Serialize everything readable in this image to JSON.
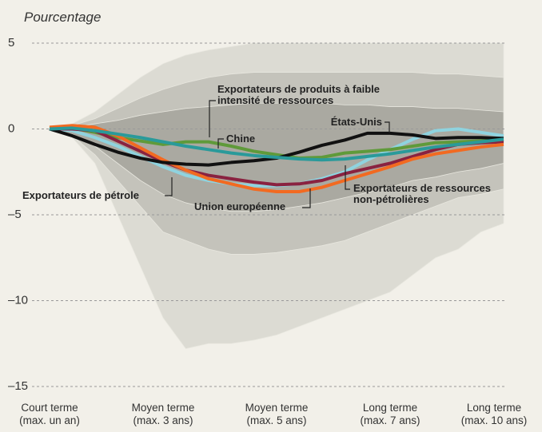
{
  "chart_data": {
    "type": "line",
    "y_label": "Pourcentage",
    "x": [
      0,
      1,
      2,
      3,
      4,
      5,
      6,
      7,
      8,
      9,
      10,
      11,
      12,
      13,
      14,
      15,
      16,
      17,
      18,
      19,
      20
    ],
    "xlim": [
      0,
      20
    ],
    "xticks": [
      {
        "value": 0,
        "label": "Court terme\n(max. un an)"
      },
      {
        "value": 5,
        "label": "Moyen terme\n(max. 3 ans)"
      },
      {
        "value": 10,
        "label": "Moyen terme\n(max. 5 ans)"
      },
      {
        "value": 15,
        "label": "Long terme\n(max. 7 ans)"
      },
      {
        "value": 20,
        "label": "Long terme\n(max. 10 ans)"
      }
    ],
    "ylim": [
      -15.3,
      5.5
    ],
    "yticks": [
      5,
      0,
      {
        "value": -5,
        "label": "–5"
      },
      {
        "value": -10,
        "label": "–10"
      },
      {
        "value": -15,
        "label": "–15"
      }
    ],
    "grid": true,
    "bands": [
      {
        "color": "#dcdbd3",
        "upper": [
          0,
          0.3,
          1,
          2,
          3,
          3.8,
          4.3,
          4.6,
          4.8,
          5,
          5,
          5,
          5,
          5,
          5,
          5,
          5,
          5,
          5,
          5,
          5
        ],
        "lower": [
          0,
          -0.5,
          -2,
          -5,
          -8,
          -11,
          -12.8,
          -12.5,
          -12.5,
          -12.3,
          -12,
          -11.5,
          -11,
          -10.5,
          -10,
          -9.5,
          -8.5,
          -7.5,
          -7,
          -6,
          -5.5
        ]
      },
      {
        "color": "#c4c3bb",
        "upper": [
          0,
          0.2,
          0.6,
          1.2,
          1.8,
          2.3,
          2.7,
          3,
          3.2,
          3.3,
          3.3,
          3.3,
          3.3,
          3.3,
          3.3,
          3.3,
          3.3,
          3.2,
          3.2,
          3.1,
          3
        ],
        "lower": [
          0,
          -0.4,
          -1.5,
          -3,
          -4.5,
          -6,
          -6.5,
          -7,
          -7.3,
          -7.3,
          -7.2,
          -7,
          -6.8,
          -6.5,
          -6,
          -5.5,
          -5,
          -4.5,
          -4,
          -3.8,
          -3.5
        ]
      },
      {
        "color": "#aaa9a1",
        "upper": [
          0,
          0.1,
          0.3,
          0.5,
          0.8,
          1,
          1.2,
          1.3,
          1.4,
          1.5,
          1.5,
          1.5,
          1.5,
          1.4,
          1.4,
          1.3,
          1.3,
          1.2,
          1.2,
          1.1,
          1
        ],
        "lower": [
          0,
          -0.3,
          -1,
          -2,
          -3,
          -3.8,
          -4.3,
          -4.6,
          -4.8,
          -4.8,
          -4.7,
          -4.5,
          -4.3,
          -4,
          -3.7,
          -3.4,
          -3,
          -2.8,
          -2.5,
          -2.3,
          -2
        ]
      }
    ],
    "series": [
      {
        "name": "Exportateurs de ressources\nnon-pétrolières",
        "color": "#8fd3df",
        "values": [
          0,
          -0.1,
          -0.5,
          -1,
          -1.6,
          -2.2,
          -2.7,
          -3,
          -3.2,
          -3.3,
          -3.3,
          -3.2,
          -2.9,
          -2.5,
          -1.8,
          -1.2,
          -0.6,
          -0.1,
          0,
          -0.2,
          -0.4
        ]
      },
      {
        "name": "Chine",
        "color": "#5f9a3a",
        "values": [
          0,
          0.05,
          -0.2,
          -0.5,
          -0.7,
          -0.9,
          -0.75,
          -0.75,
          -1,
          -1.3,
          -1.5,
          -1.7,
          -1.65,
          -1.4,
          -1.3,
          -1.2,
          -1,
          -0.8,
          -0.75,
          -0.7,
          -0.65
        ]
      },
      {
        "name": "Exportateurs de pétrole",
        "color": "#8a2240",
        "values": [
          0,
          0,
          -0.1,
          -0.7,
          -1.3,
          -1.9,
          -2.4,
          -2.7,
          -2.9,
          -3.1,
          -3.25,
          -3.2,
          -3,
          -2.6,
          -2.3,
          -2,
          -1.6,
          -1.2,
          -0.9,
          -0.8,
          -0.75
        ]
      },
      {
        "name": "Union européenne",
        "color": "#f26a21",
        "values": [
          0.1,
          0.2,
          0.1,
          -0.4,
          -1.1,
          -1.8,
          -2.4,
          -2.9,
          -3.2,
          -3.5,
          -3.65,
          -3.65,
          -3.4,
          -3,
          -2.6,
          -2.2,
          -1.75,
          -1.45,
          -1.25,
          -1.05,
          -0.9
        ]
      },
      {
        "name": "États-Unis",
        "color": "#111111",
        "values": [
          0,
          -0.4,
          -0.9,
          -1.35,
          -1.7,
          -1.95,
          -2.05,
          -2.1,
          -1.95,
          -1.85,
          -1.7,
          -1.35,
          -0.95,
          -0.65,
          -0.25,
          -0.25,
          -0.35,
          -0.55,
          -0.5,
          -0.5,
          -0.55
        ]
      },
      {
        "name": "Exportateurs de produits à faible\nintensité de ressources",
        "color": "#2a9a9a",
        "values": [
          0,
          0.05,
          -0.1,
          -0.3,
          -0.5,
          -0.75,
          -1,
          -1.2,
          -1.4,
          -1.55,
          -1.65,
          -1.75,
          -1.8,
          -1.75,
          -1.6,
          -1.45,
          -1.25,
          -1.05,
          -0.9,
          -0.75,
          -0.6
        ]
      }
    ]
  }
}
